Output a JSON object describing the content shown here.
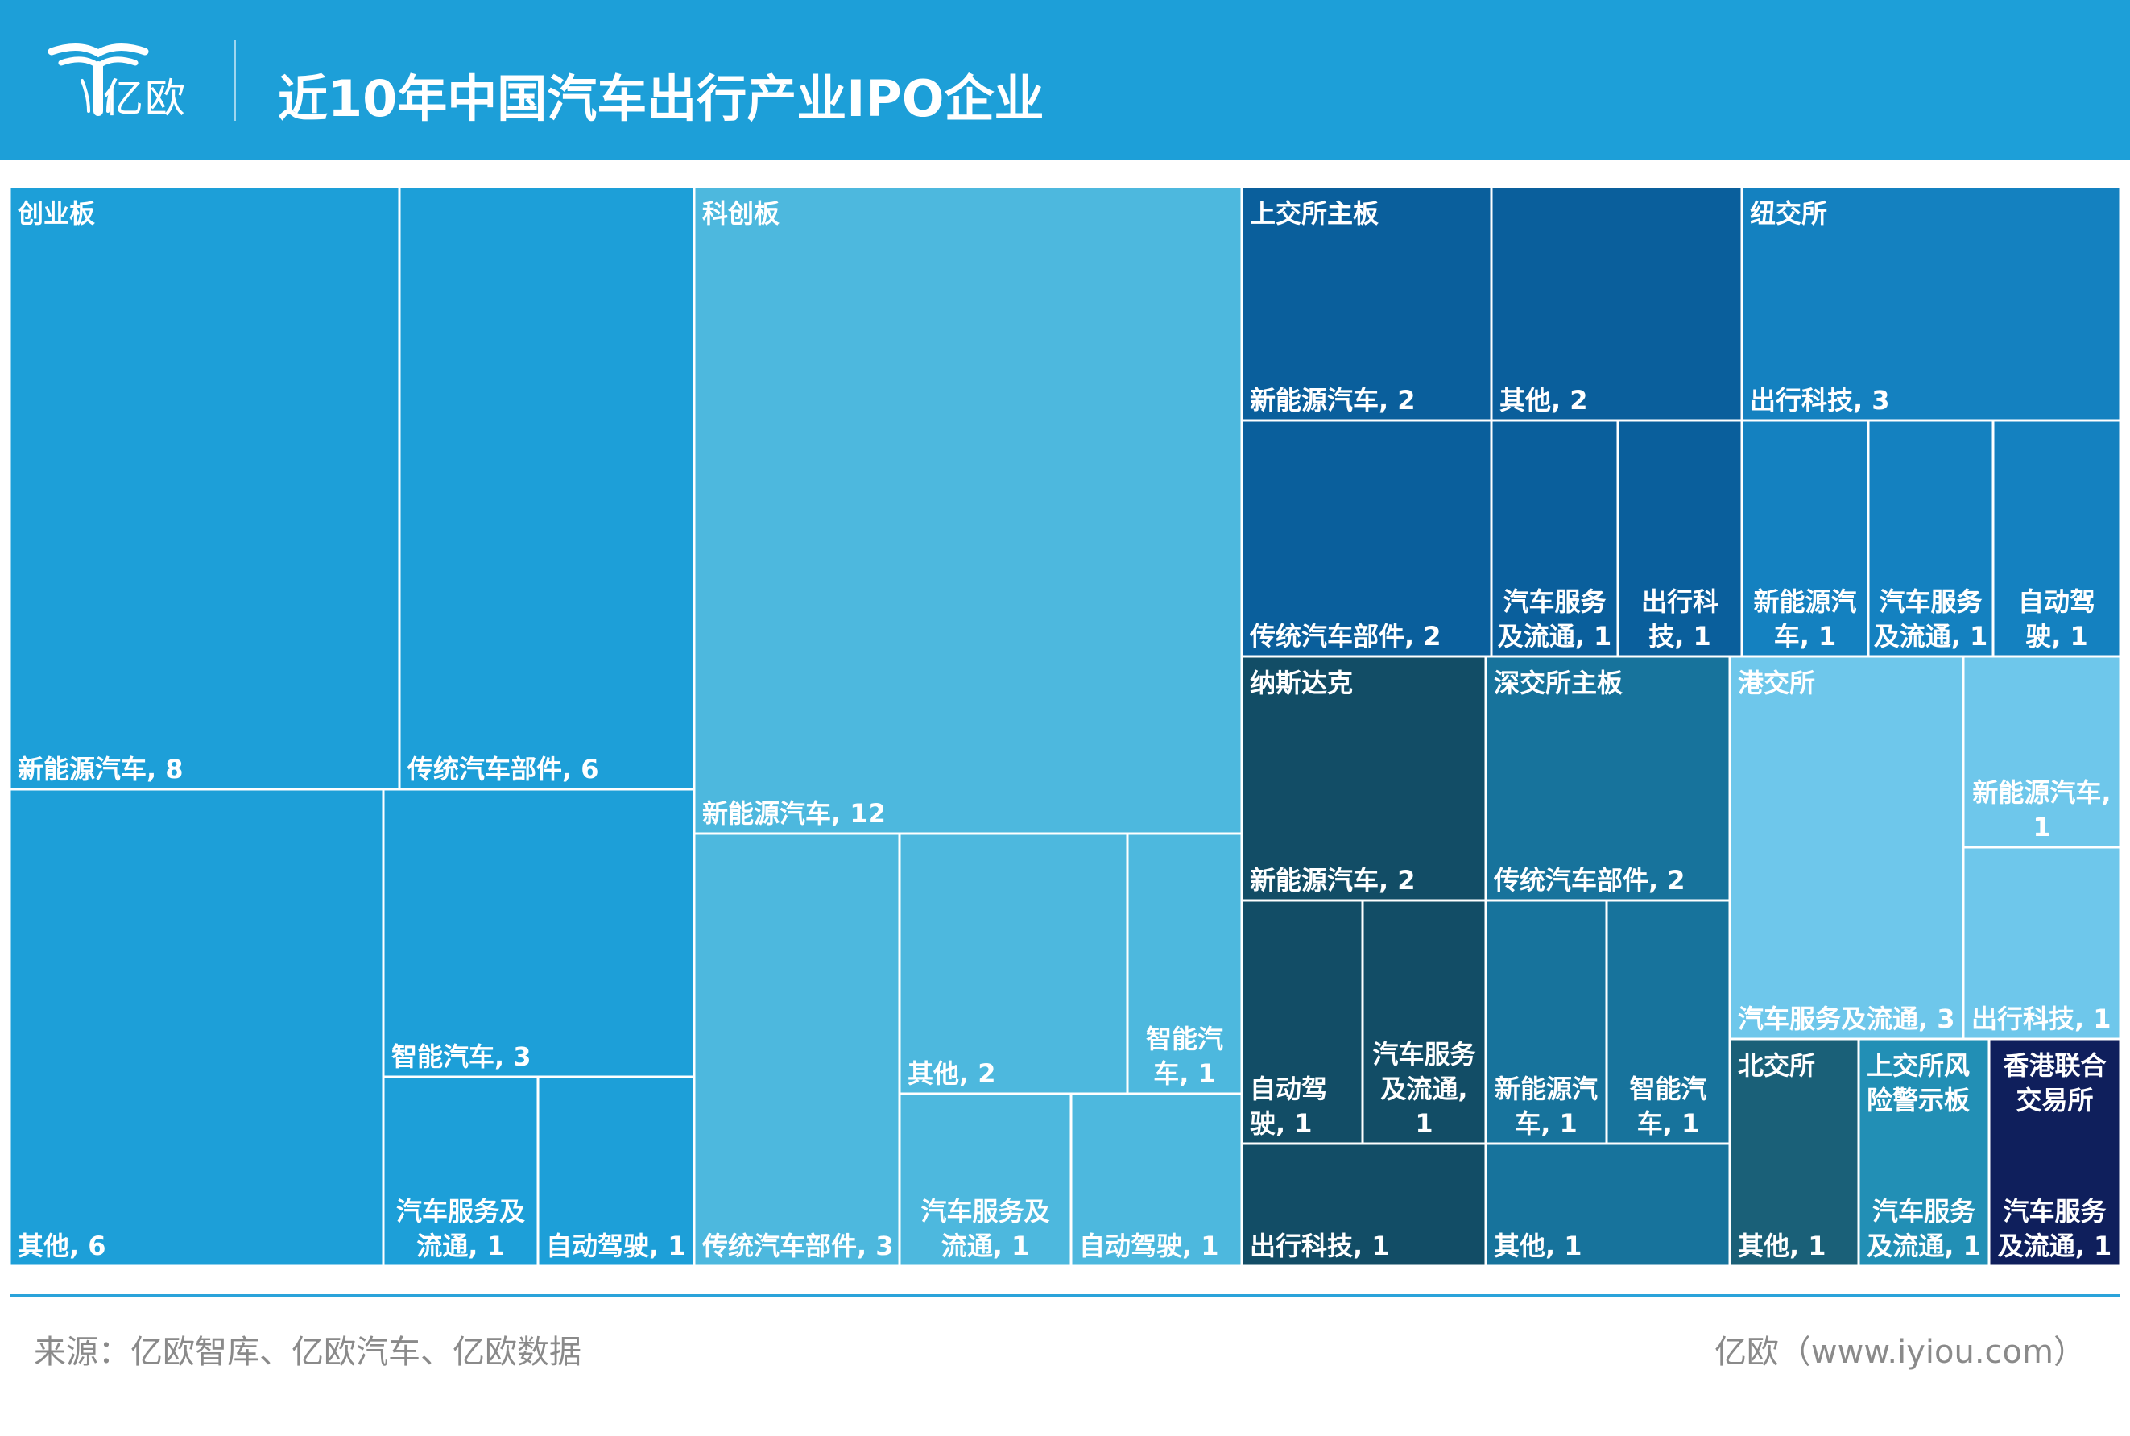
{
  "header": {
    "logo_text": "亿欧",
    "title": "近10年中国汽车出行产业IPO企业"
  },
  "footer": {
    "source": "来源：亿欧智库、亿欧汽车、亿欧数据",
    "credit": "亿欧（www.iyiou.com）"
  },
  "colors": {
    "header_bg": "#1d9fd8",
    "创业板": "#1d9fd8",
    "科创板": "#4db8de",
    "上交所主板": "#0a5f9c",
    "纽交所": "#1481c0",
    "纳斯达克": "#124d66",
    "深交所主板": "#17739c",
    "港交所": "#6ec7eb",
    "北交所": "#1a6078",
    "上交所风险警示板": "#228fb5",
    "香港联合交易所": "#0f1f5c"
  },
  "chart_data": {
    "type": "treemap",
    "title": "近10年中国汽车出行产业IPO企业",
    "groups": [
      {
        "name": "创业板",
        "children": [
          {
            "name": "新能源汽车",
            "value": 8,
            "label": "新能源汽车, 8"
          },
          {
            "name": "传统汽车部件",
            "value": 6,
            "label": "传统汽车部件, 6"
          },
          {
            "name": "其他",
            "value": 6,
            "label": "其他, 6"
          },
          {
            "name": "智能汽车",
            "value": 3,
            "label": "智能汽车, 3"
          },
          {
            "name": "汽车服务及流通",
            "value": 1,
            "label": "汽车服务及\n流通, 1"
          },
          {
            "name": "自动驾驶",
            "value": 1,
            "label": "自动驾驶, 1"
          }
        ]
      },
      {
        "name": "科创板",
        "children": [
          {
            "name": "新能源汽车",
            "value": 12,
            "label": "新能源汽车, 12"
          },
          {
            "name": "传统汽车部件",
            "value": 3,
            "label": "传统汽车部件, 3"
          },
          {
            "name": "其他",
            "value": 2,
            "label": "其他, 2"
          },
          {
            "name": "智能汽车",
            "value": 1,
            "label": "智能汽\n车, 1"
          },
          {
            "name": "汽车服务及流通",
            "value": 1,
            "label": "汽车服务及\n流通, 1"
          },
          {
            "name": "自动驾驶",
            "value": 1,
            "label": "自动驾驶, 1"
          }
        ]
      },
      {
        "name": "上交所主板",
        "children": [
          {
            "name": "新能源汽车",
            "value": 2,
            "label": "新能源汽车, 2"
          },
          {
            "name": "其他",
            "value": 2,
            "label": "其他, 2"
          },
          {
            "name": "传统汽车部件",
            "value": 2,
            "label": "传统汽车部件, 2"
          },
          {
            "name": "汽车服务及流通",
            "value": 1,
            "label": "汽车服务\n及流通, 1"
          },
          {
            "name": "出行科技",
            "value": 1,
            "label": "出行科\n技, 1"
          }
        ]
      },
      {
        "name": "纽交所",
        "children": [
          {
            "name": "出行科技",
            "value": 3,
            "label": "出行科技, 3"
          },
          {
            "name": "新能源汽车",
            "value": 1,
            "label": "新能源汽\n车, 1"
          },
          {
            "name": "汽车服务及流通",
            "value": 1,
            "label": "汽车服务\n及流通, 1"
          },
          {
            "name": "自动驾驶",
            "value": 1,
            "label": "自动驾\n驶, 1"
          }
        ]
      },
      {
        "name": "纳斯达克",
        "children": [
          {
            "name": "新能源汽车",
            "value": 2,
            "label": "新能源汽车, 2"
          },
          {
            "name": "自动驾驶",
            "value": 1,
            "label": "自动驾\n驶, 1"
          },
          {
            "name": "汽车服务及流通",
            "value": 1,
            "label": "汽车服务\n及流通,\n1"
          },
          {
            "name": "出行科技",
            "value": 1,
            "label": "出行科技, 1"
          }
        ]
      },
      {
        "name": "深交所主板",
        "children": [
          {
            "name": "传统汽车部件",
            "value": 2,
            "label": "传统汽车部件, 2"
          },
          {
            "name": "新能源汽车",
            "value": 1,
            "label": "新能源汽\n车, 1"
          },
          {
            "name": "智能汽车",
            "value": 1,
            "label": "智能汽\n车, 1"
          },
          {
            "name": "其他",
            "value": 1,
            "label": "其他, 1"
          }
        ]
      },
      {
        "name": "港交所",
        "children": [
          {
            "name": "汽车服务及流通",
            "value": 3,
            "label": "汽车服务及流通, 3"
          },
          {
            "name": "新能源汽车",
            "value": 1,
            "label": "新能源汽车,\n1"
          },
          {
            "name": "出行科技",
            "value": 1,
            "label": "出行科技, 1"
          }
        ]
      },
      {
        "name": "北交所",
        "children": [
          {
            "name": "其他",
            "value": 1,
            "label": "其他, 1"
          }
        ]
      },
      {
        "name": "上交所风险警示板",
        "header_label": "上交所风\n险警示板",
        "children": [
          {
            "name": "汽车服务及流通",
            "value": 1,
            "label": "汽车服务\n及流通, 1"
          }
        ]
      },
      {
        "name": "香港联合交易所",
        "header_label": "香港联合\n交易所",
        "children": [
          {
            "name": "汽车服务及流通",
            "value": 1,
            "label": "汽车服务\n及流通, 1"
          }
        ]
      }
    ]
  }
}
